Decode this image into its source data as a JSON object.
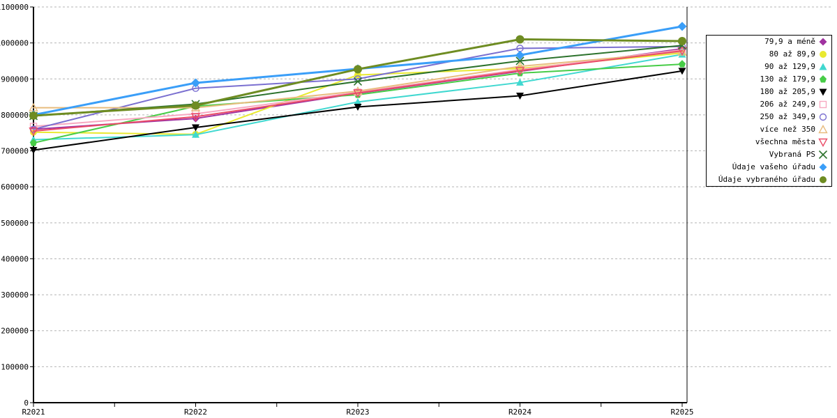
{
  "chart_data": {
    "type": "line",
    "title": "",
    "xlabel": "",
    "ylabel": "",
    "categories": [
      "R2021",
      "R2022",
      "R2023",
      "R2024",
      "R2025"
    ],
    "ylim": [
      0,
      1100000
    ],
    "y_tick_step": 100000,
    "y_tick_labels": [
      "0",
      "100000",
      "200000",
      "300000",
      "400000",
      "500000",
      "600000",
      "700000",
      "800000",
      "900000",
      "1000000",
      "1100000"
    ],
    "grid": "horizontal-dashed",
    "grid_color": "#b4b4b4",
    "axis_color": "#000000",
    "legend_position": "right",
    "series": [
      {
        "name": "79,9 a méně",
        "color": "#a032a0",
        "marker": "diamond-filled",
        "emphasis": false,
        "values": [
          760000,
          790000,
          860000,
          921000,
          984000
        ]
      },
      {
        "name": "80 až 89,9",
        "color": "#e9e930",
        "marker": "circle-filled",
        "emphasis": false,
        "values": [
          752000,
          746000,
          911000,
          929000,
          972000
        ]
      },
      {
        "name": "90 až 129,9",
        "color": "#40d8d0",
        "marker": "triangle-up-filled",
        "emphasis": false,
        "values": [
          731000,
          745000,
          836000,
          890000,
          968000
        ]
      },
      {
        "name": "130 až 179,9",
        "color": "#47cc47",
        "marker": "pentagon-filled",
        "emphasis": false,
        "values": [
          722000,
          824000,
          856000,
          916000,
          941000
        ]
      },
      {
        "name": "180 až 205,9",
        "color": "#000000",
        "marker": "triangle-down-filled",
        "emphasis": false,
        "values": [
          702000,
          765000,
          822000,
          853000,
          922000
        ]
      },
      {
        "name": "206 až 249,9",
        "color": "#f7a8c1",
        "marker": "square-open",
        "emphasis": false,
        "values": [
          768000,
          803000,
          863000,
          926000,
          981000
        ]
      },
      {
        "name": "250 až 349,9",
        "color": "#7a6fd0",
        "marker": "circle-open",
        "emphasis": false,
        "values": [
          760000,
          874000,
          900000,
          985000,
          990000
        ]
      },
      {
        "name": "více než 350",
        "color": "#e8bc7e",
        "marker": "triangle-up-open",
        "emphasis": false,
        "values": [
          820000,
          820000,
          866000,
          935000,
          975000
        ]
      },
      {
        "name": "všechna města",
        "color": "#ea4c67",
        "marker": "triangle-down-open",
        "emphasis": false,
        "values": [
          755000,
          795000,
          861000,
          923000,
          978000
        ]
      },
      {
        "name": "Vybraná PS",
        "color": "#2c722c",
        "marker": "x-cross",
        "emphasis": false,
        "values": [
          797000,
          830000,
          893000,
          950000,
          993000
        ]
      },
      {
        "name": "Údaje vašeho úřadu",
        "color": "#3a9ef8",
        "marker": "diamond-filled",
        "emphasis": true,
        "values": [
          800000,
          889000,
          928000,
          966000,
          1046000
        ]
      },
      {
        "name": "Údaje vybraného úřadu",
        "color": "#6e8c22",
        "marker": "circle-filled",
        "emphasis": true,
        "values": [
          798000,
          826000,
          927000,
          1010000,
          1005000
        ]
      }
    ]
  },
  "layout_colors": {
    "background": "#ffffff",
    "legend_border": "#000000",
    "legend_text": "#000000"
  }
}
